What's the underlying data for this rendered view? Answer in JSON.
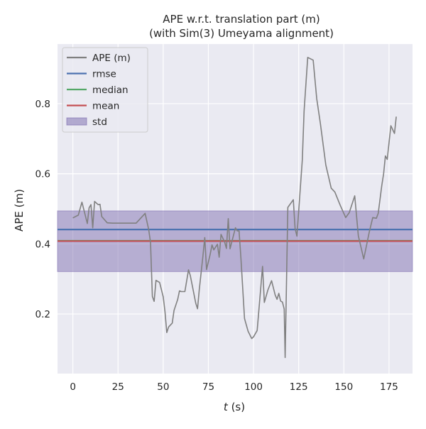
{
  "chart_data": {
    "type": "line",
    "title": "APE w.r.t. translation part (m)",
    "subtitle": "(with Sim(3) Umeyama alignment)",
    "xlabel_italic": "t",
    "xlabel_unit": " (s)",
    "ylabel": "APE (m)",
    "xlim": [
      -8.5,
      188
    ],
    "ylim": [
      0.03,
      0.97
    ],
    "xticks": [
      0,
      25,
      50,
      75,
      100,
      125,
      150,
      175
    ],
    "yticks": [
      0.2,
      0.4,
      0.6,
      0.8
    ],
    "ytick_labels": [
      "0.2",
      "0.4",
      "0.6",
      "0.8"
    ],
    "grid": true,
    "legend_position": "top-left",
    "colors": {
      "background": "#eaeaf2",
      "grid": "#ffffff",
      "ape": "#808080",
      "rmse": "#4c72b0",
      "median": "#55a868",
      "mean": "#c44e52",
      "std_fill": "#8172b2"
    },
    "legend": [
      {
        "label": "APE (m)",
        "kind": "line",
        "color": "#808080"
      },
      {
        "label": "rmse",
        "kind": "line",
        "color": "#4c72b0"
      },
      {
        "label": "median",
        "kind": "line",
        "color": "#55a868"
      },
      {
        "label": "mean",
        "kind": "line",
        "color": "#c44e52"
      },
      {
        "label": "std",
        "kind": "patch",
        "color": "#8172b2"
      }
    ],
    "stats": {
      "rmse": 0.441,
      "median": 0.409,
      "mean": 0.408,
      "std_low": 0.321,
      "std_high": 0.494
    },
    "series": [
      {
        "name": "APE (m)",
        "x": [
          0,
          3,
          5,
          8,
          9,
          10,
          11,
          12,
          14,
          15,
          16,
          19,
          22,
          26,
          30,
          35,
          40,
          42,
          43,
          44,
          45,
          46,
          48,
          50,
          51,
          52,
          53,
          55,
          56,
          58,
          59,
          60,
          62,
          64,
          65,
          68,
          69,
          70,
          72,
          73,
          74,
          76,
          77,
          78,
          80,
          81,
          82,
          84,
          85,
          86,
          87,
          90,
          91,
          92,
          93,
          95,
          97,
          99,
          100,
          102,
          105,
          106,
          108,
          110,
          112,
          113,
          114,
          115,
          116,
          117,
          117.5,
          118,
          119,
          122,
          123,
          124,
          127,
          128,
          130,
          133,
          135,
          137,
          140,
          143,
          145,
          148,
          151,
          153,
          156,
          158,
          161,
          164,
          166,
          168,
          169,
          171,
          172,
          173,
          174,
          176,
          178,
          179
        ],
        "y": [
          0.474,
          0.482,
          0.519,
          0.458,
          0.503,
          0.512,
          0.446,
          0.521,
          0.512,
          0.513,
          0.478,
          0.46,
          0.459,
          0.459,
          0.459,
          0.459,
          0.487,
          0.44,
          0.404,
          0.25,
          0.236,
          0.296,
          0.29,
          0.249,
          0.206,
          0.147,
          0.163,
          0.174,
          0.21,
          0.241,
          0.266,
          0.264,
          0.264,
          0.326,
          0.31,
          0.231,
          0.215,
          0.27,
          0.365,
          0.418,
          0.327,
          0.37,
          0.397,
          0.383,
          0.399,
          0.362,
          0.427,
          0.405,
          0.387,
          0.472,
          0.386,
          0.446,
          0.437,
          0.437,
          0.36,
          0.187,
          0.151,
          0.13,
          0.135,
          0.153,
          0.336,
          0.233,
          0.269,
          0.295,
          0.254,
          0.242,
          0.259,
          0.237,
          0.234,
          0.214,
          0.076,
          0.22,
          0.504,
          0.526,
          0.444,
          0.422,
          0.64,
          0.779,
          0.932,
          0.924,
          0.814,
          0.744,
          0.625,
          0.559,
          0.548,
          0.51,
          0.475,
          0.489,
          0.537,
          0.423,
          0.357,
          0.432,
          0.475,
          0.473,
          0.487,
          0.566,
          0.6,
          0.651,
          0.641,
          0.737,
          0.715,
          0.763
        ]
      }
    ]
  }
}
